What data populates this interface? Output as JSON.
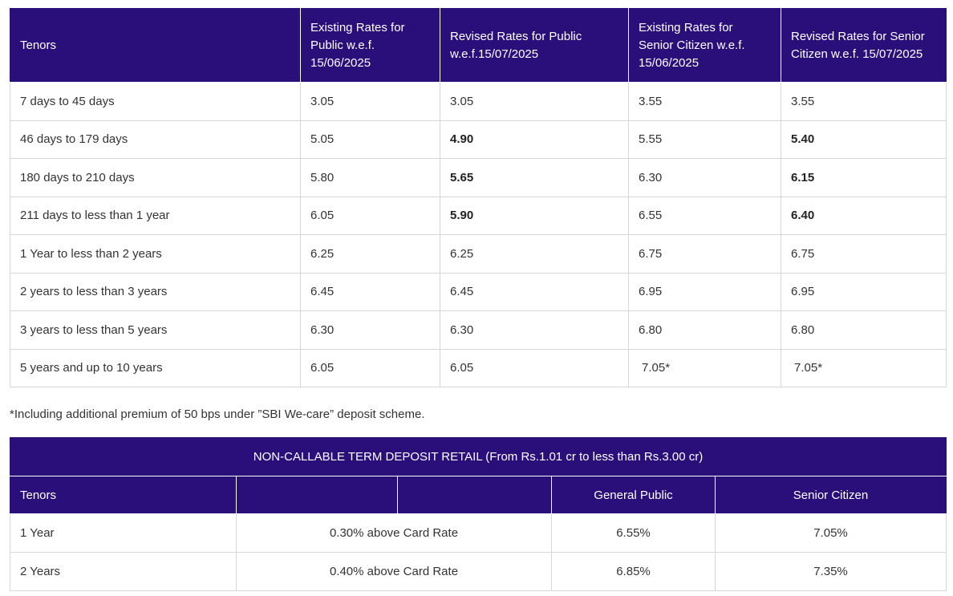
{
  "rates_table": {
    "headers": [
      "Tenors",
      "Existing Rates for Public w.e.f. 15/06/2025",
      "Revised Rates for Public w.e.f.15/07/2025",
      "Existing Rates for Senior Citizen w.e.f. 15/06/2025",
      "Revised Rates for Senior Citizen  w.e.f. 15/07/2025"
    ],
    "rows": [
      [
        "7 days to 45 days",
        "3.05",
        "3.05",
        "3.55",
        "3.55"
      ],
      [
        "46 days to 179 days",
        "5.05",
        "4.90",
        "5.55",
        "5.40"
      ],
      [
        "180 days to 210 days",
        "5.80",
        "5.65",
        "6.30",
        "6.15"
      ],
      [
        "211 days to less than 1 year",
        "6.05",
        "5.90",
        "6.55",
        "6.40"
      ],
      [
        "1 Year to less than 2 years",
        "6.25",
        "6.25",
        "6.75",
        "6.75"
      ],
      [
        "2 years to less than 3 years",
        "6.45",
        "6.45",
        "6.95",
        "6.95"
      ],
      [
        "3 years to less than 5 years",
        "6.30",
        "6.30",
        "6.80",
        "6.80"
      ],
      [
        "5 years and up to 10 years",
        "6.05",
        "6.05",
        "7.05*",
        "7.05*"
      ]
    ]
  },
  "footnote": "*Including additional premium of 50 bps under ”SBI We-care” deposit scheme.",
  "ncd_table": {
    "caption": "NON-CALLABLE TERM DEPOSIT RETAIL (From Rs.1.01 cr to less than Rs.3.00 cr)",
    "headers": {
      "tenors": "Tenors",
      "blank_1": "",
      "blank_2": "",
      "general_public": "General Public",
      "senior_citizen": "Senior Citizen"
    },
    "rows": [
      [
        "1 Year",
        "0.30% above Card Rate",
        "6.55%",
        "7.05%"
      ],
      [
        "2 Years",
        "0.40% above Card Rate",
        "6.85%",
        "7.35%"
      ]
    ]
  }
}
